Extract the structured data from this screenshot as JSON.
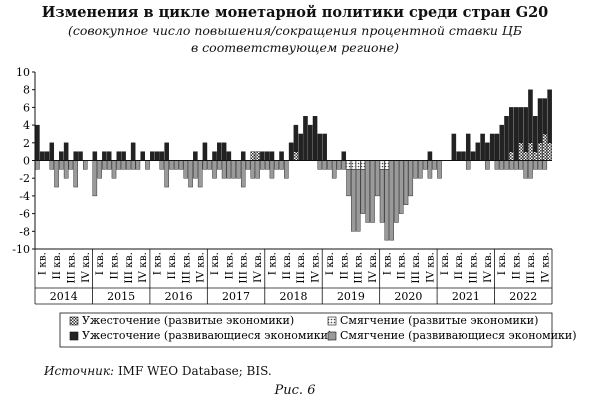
{
  "title": "Изменения в цикле монетарной политики среди стран G20",
  "subtitle_line1": "(совокупное число повышения/сокращения процентной ставки ЦБ",
  "subtitle_line2": "в соответствующем регионе)",
  "source_label": "Источник:",
  "source_text": "IMF WEO Database; BIS.",
  "figure_caption": "Рис. 6",
  "chart_data": {
    "type": "bar",
    "stacked": true,
    "ylim": [
      -10,
      10
    ],
    "yticks": [
      -10,
      -8,
      -6,
      -4,
      -2,
      0,
      2,
      4,
      6,
      8,
      10
    ],
    "grid": false,
    "legend_position": "bottom",
    "years": [
      "2014",
      "2015",
      "2016",
      "2017",
      "2018",
      "2019",
      "2020",
      "2021",
      "2022"
    ],
    "quarter_labels": [
      "I кв.",
      "II кв.",
      "III кв.",
      "IV кв."
    ],
    "months_per_quarter": 3,
    "series": [
      {
        "name": "Ужесточение (развитые экономики)",
        "color": "#ffffff",
        "pattern": "checker",
        "values": [
          0,
          0,
          0,
          0,
          0,
          0,
          0,
          0,
          0,
          0,
          0,
          0,
          0,
          0,
          0,
          0,
          0,
          0,
          0,
          0,
          0,
          0,
          0,
          0,
          0,
          0,
          0,
          0,
          0,
          0,
          0,
          0,
          0,
          0,
          0,
          0,
          0,
          0,
          0,
          0,
          0,
          0,
          0,
          0,
          0,
          1,
          1,
          0,
          0,
          0,
          0,
          0,
          0,
          0,
          1,
          0,
          0,
          0,
          0,
          0,
          0,
          0,
          0,
          0,
          0,
          0,
          0,
          0,
          0,
          0,
          0,
          0,
          0,
          0,
          0,
          0,
          0,
          0,
          0,
          0,
          0,
          0,
          0,
          0,
          0,
          0,
          0,
          0,
          0,
          0,
          0,
          0,
          0,
          0,
          0,
          0,
          0,
          0,
          0,
          1,
          0,
          2,
          1,
          2,
          1,
          2,
          3,
          2
        ]
      },
      {
        "name": "Смягчение (развитые экономики)",
        "color": "#dddddd",
        "pattern": "dots",
        "values": [
          0,
          0,
          0,
          0,
          0,
          0,
          0,
          0,
          0,
          0,
          0,
          0,
          0,
          0,
          0,
          0,
          0,
          0,
          0,
          0,
          0,
          0,
          0,
          0,
          0,
          0,
          0,
          0,
          0,
          0,
          0,
          0,
          0,
          0,
          0,
          0,
          0,
          0,
          0,
          0,
          0,
          0,
          0,
          0,
          0,
          0,
          0,
          0,
          0,
          0,
          0,
          0,
          0,
          0,
          0,
          0,
          0,
          0,
          0,
          0,
          0,
          0,
          0,
          0,
          0,
          -1,
          -1,
          -1,
          -1,
          0,
          0,
          0,
          -1,
          -1,
          0,
          0,
          0,
          0,
          0,
          0,
          0,
          0,
          0,
          0,
          0,
          0,
          0,
          0,
          0,
          0,
          0,
          0,
          0,
          0,
          0,
          0,
          0,
          0,
          0,
          0,
          0,
          0,
          0,
          0,
          0,
          0,
          0,
          0
        ]
      },
      {
        "name": "Ужесточение (развивающиеся экономики)",
        "color": "#222222",
        "pattern": "solid",
        "values": [
          4,
          1,
          1,
          2,
          0,
          1,
          2,
          0,
          1,
          1,
          0,
          0,
          1,
          0,
          1,
          1,
          0,
          1,
          1,
          0,
          2,
          0,
          1,
          0,
          1,
          1,
          1,
          2,
          0,
          0,
          0,
          0,
          0,
          1,
          0,
          2,
          0,
          1,
          2,
          2,
          1,
          0,
          0,
          1,
          0,
          0,
          0,
          1,
          1,
          1,
          0,
          1,
          0,
          2,
          3,
          3,
          5,
          4,
          5,
          3,
          3,
          0,
          0,
          0,
          1,
          0,
          0,
          0,
          0,
          0,
          0,
          0,
          0,
          0,
          0,
          0,
          0,
          0,
          0,
          0,
          0,
          0,
          1,
          0,
          0,
          0,
          0,
          3,
          1,
          1,
          3,
          1,
          2,
          3,
          2,
          3,
          3,
          4,
          5,
          5,
          6,
          4,
          5,
          6,
          4,
          5,
          4,
          6
        ]
      },
      {
        "name": "Смягчение (развивающиеся экономики)",
        "color": "#9a9a9a",
        "pattern": "solid",
        "values": [
          -1,
          0,
          0,
          -1,
          -3,
          -1,
          -2,
          -1,
          -3,
          0,
          -1,
          0,
          -4,
          -2,
          -1,
          -1,
          -2,
          -1,
          -1,
          -1,
          -1,
          -1,
          0,
          -1,
          0,
          0,
          -1,
          -3,
          -1,
          -1,
          -1,
          -2,
          -3,
          -2,
          -3,
          -1,
          -1,
          -2,
          -1,
          -2,
          -2,
          -2,
          -2,
          -3,
          -1,
          -2,
          -2,
          -1,
          -1,
          -2,
          -1,
          -1,
          -2,
          0,
          0,
          0,
          0,
          0,
          0,
          -1,
          -1,
          -1,
          -2,
          -1,
          -1,
          -3,
          -7,
          -7,
          -5,
          -7,
          -7,
          -4,
          -6,
          -8,
          -9,
          -7,
          -6,
          -5,
          -4,
          -2,
          -2,
          -1,
          -2,
          -1,
          -2,
          0,
          0,
          0,
          0,
          0,
          -1,
          0,
          0,
          0,
          -1,
          0,
          -1,
          -1,
          -1,
          -1,
          -1,
          -1,
          -2,
          -2,
          -1,
          -1,
          -1,
          0
        ]
      }
    ]
  }
}
